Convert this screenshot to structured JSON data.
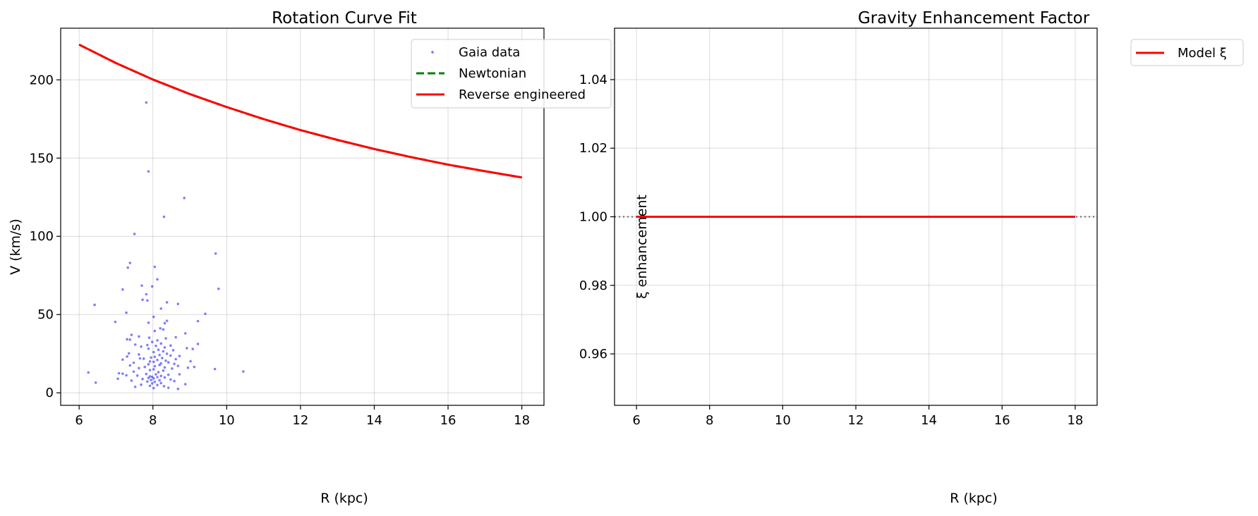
{
  "chart_data": [
    {
      "type": "scatter",
      "title": "Rotation Curve Fit",
      "xlabel": "R (kpc)",
      "ylabel": "V (km/s)",
      "xlim": [
        5.5,
        18.6
      ],
      "ylim": [
        -8,
        233
      ],
      "xticks": [
        6,
        8,
        10,
        12,
        14,
        16,
        18
      ],
      "yticks": [
        0,
        50,
        100,
        150,
        200
      ],
      "grid": true,
      "legend_position": "top-right",
      "series": [
        {
          "name": "Gaia data",
          "kind": "scatter",
          "color": "#0000ff",
          "points": [
            [
              7.82,
              185.5
            ],
            [
              7.88,
              141.5
            ],
            [
              8.85,
              124.5
            ],
            [
              8.3,
              112.5
            ],
            [
              7.5,
              101.5
            ],
            [
              9.7,
              89
            ],
            [
              7.38,
              83
            ],
            [
              8.05,
              80.5
            ],
            [
              7.32,
              80
            ],
            [
              8.12,
              72.5
            ],
            [
              7.7,
              68.5
            ],
            [
              7.98,
              68
            ],
            [
              9.78,
              66.5
            ],
            [
              7.18,
              66
            ],
            [
              7.82,
              63
            ],
            [
              7.72,
              59.5
            ],
            [
              7.85,
              59
            ],
            [
              8.38,
              57.8
            ],
            [
              8.68,
              56.8
            ],
            [
              6.42,
              56.2
            ],
            [
              8.22,
              53.8
            ],
            [
              7.28,
              51.2
            ],
            [
              9.42,
              50.5
            ],
            [
              8.02,
              48.5
            ],
            [
              8.38,
              46
            ],
            [
              9.22,
              45.8
            ],
            [
              6.98,
              45.3
            ],
            [
              7.88,
              44.8
            ],
            [
              8.32,
              44.5
            ],
            [
              8.2,
              41.2
            ],
            [
              8.28,
              40.5
            ],
            [
              8.05,
              39.5
            ],
            [
              8.88,
              38
            ],
            [
              7.42,
              37
            ],
            [
              7.62,
              36
            ],
            [
              8.62,
              35.5
            ],
            [
              7.9,
              35.2
            ],
            [
              8.35,
              34.8
            ],
            [
              7.3,
              34.2
            ],
            [
              7.38,
              34
            ],
            [
              8.12,
              33.5
            ],
            [
              7.98,
              32.5
            ],
            [
              8.22,
              31.5
            ],
            [
              9.22,
              31.2
            ],
            [
              7.52,
              30.8
            ],
            [
              7.85,
              30.5
            ],
            [
              8.08,
              30
            ],
            [
              8.48,
              30.2
            ],
            [
              7.68,
              29.5
            ],
            [
              8.32,
              29
            ],
            [
              8.92,
              28.5
            ],
            [
              9.08,
              28
            ],
            [
              7.88,
              28.2
            ],
            [
              8.15,
              27.5
            ],
            [
              8.55,
              27.2
            ],
            [
              8.28,
              26.5
            ],
            [
              8.02,
              26
            ],
            [
              7.35,
              25.2
            ],
            [
              8.38,
              25
            ],
            [
              7.62,
              24.5
            ],
            [
              8.18,
              24.2
            ],
            [
              8.48,
              23.8
            ],
            [
              8.72,
              23.5
            ],
            [
              7.3,
              23.2
            ],
            [
              8.05,
              23
            ],
            [
              7.95,
              22.5
            ],
            [
              8.25,
              22.2
            ],
            [
              7.65,
              22
            ],
            [
              7.75,
              21.8
            ],
            [
              8.62,
              21.5
            ],
            [
              7.18,
              21.2
            ],
            [
              8.12,
              21
            ],
            [
              8.35,
              20.5
            ],
            [
              9.02,
              20.2
            ],
            [
              7.92,
              20
            ],
            [
              8.02,
              19.8
            ],
            [
              8.42,
              19.5
            ],
            [
              7.48,
              19.2
            ],
            [
              8.22,
              18.8
            ],
            [
              8.58,
              18.5
            ],
            [
              7.88,
              18.2
            ],
            [
              8.18,
              17.8
            ],
            [
              7.38,
              17.5
            ],
            [
              8.68,
              17.2
            ],
            [
              8.05,
              17
            ],
            [
              7.78,
              16.5
            ],
            [
              8.32,
              16.2
            ],
            [
              9.12,
              16.5
            ],
            [
              8.95,
              16
            ],
            [
              7.62,
              15.8
            ],
            [
              8.52,
              15.5
            ],
            [
              9.68,
              15.2
            ],
            [
              8.02,
              15
            ],
            [
              7.92,
              14.5
            ],
            [
              8.28,
              14.2
            ],
            [
              10.45,
              13.6
            ],
            [
              6.25,
              13
            ],
            [
              7.48,
              13.5
            ],
            [
              8.15,
              13.2
            ],
            [
              7.08,
              12.5
            ],
            [
              7.18,
              12.2
            ],
            [
              7.82,
              12
            ],
            [
              8.08,
              11.8
            ],
            [
              8.42,
              11.5
            ],
            [
              8.72,
              11.8
            ],
            [
              7.28,
              11.2
            ],
            [
              7.58,
              11
            ],
            [
              8.22,
              10.8
            ],
            [
              7.92,
              10.5
            ],
            [
              7.98,
              10.2
            ],
            [
              8.12,
              10
            ],
            [
              8.32,
              9.8
            ],
            [
              7.88,
              9.5
            ],
            [
              8.02,
              9.2
            ],
            [
              7.05,
              9
            ],
            [
              7.72,
              8.8
            ],
            [
              8.48,
              8.5
            ],
            [
              7.95,
              8.2
            ],
            [
              8.18,
              8
            ],
            [
              7.42,
              7.8
            ],
            [
              8.58,
              7.5
            ],
            [
              7.85,
              7.2
            ],
            [
              8.05,
              7
            ],
            [
              6.45,
              6.5
            ],
            [
              8.22,
              6.2
            ],
            [
              7.98,
              6
            ],
            [
              8.88,
              5.5
            ],
            [
              7.68,
              5.2
            ],
            [
              8.12,
              5
            ],
            [
              7.92,
              4.5
            ],
            [
              8.3,
              4.2
            ],
            [
              7.52,
              3.8
            ],
            [
              8.42,
              3.2
            ],
            [
              8.68,
              2.5
            ],
            [
              8.02,
              3
            ]
          ]
        },
        {
          "name": "Newtonian",
          "kind": "line",
          "color": "#008000",
          "dash": true,
          "x": [
            6,
            7,
            8,
            9,
            10,
            11,
            12,
            13,
            14,
            15,
            16,
            17,
            18
          ],
          "y": [
            222.5,
            210.7,
            200.2,
            190.9,
            182.6,
            174.9,
            167.9,
            161.6,
            155.8,
            150.6,
            145.8,
            141.6,
            137.6
          ]
        },
        {
          "name": "Reverse engineered",
          "kind": "line",
          "color": "#ff0000",
          "x": [
            6,
            7,
            8,
            9,
            10,
            11,
            12,
            13,
            14,
            15,
            16,
            17,
            18
          ],
          "y": [
            222.5,
            210.7,
            200.2,
            190.9,
            182.6,
            174.9,
            167.9,
            161.6,
            155.8,
            150.6,
            145.8,
            141.6,
            137.6
          ]
        }
      ]
    },
    {
      "type": "line",
      "title": "Gravity Enhancement Factor",
      "xlabel": "R (kpc)",
      "ylabel": "ξ enhancement",
      "xlim": [
        5.4,
        18.6
      ],
      "ylim": [
        0.945,
        1.055
      ],
      "xticks": [
        6,
        8,
        10,
        12,
        14,
        16,
        18
      ],
      "yticks": [
        0.96,
        0.98,
        1.0,
        1.02,
        1.04
      ],
      "ytick_labels": [
        "0.96",
        "0.98",
        "1.00",
        "1.02",
        "1.04"
      ],
      "grid": true,
      "legend_position": "top-right",
      "reference_line": {
        "y": 1.0,
        "style": "dotted",
        "color": "#555555"
      },
      "series": [
        {
          "name": "Model ξ",
          "kind": "line",
          "color": "#ff0000",
          "x": [
            6,
            18
          ],
          "y": [
            1.0,
            1.0
          ]
        }
      ]
    }
  ]
}
